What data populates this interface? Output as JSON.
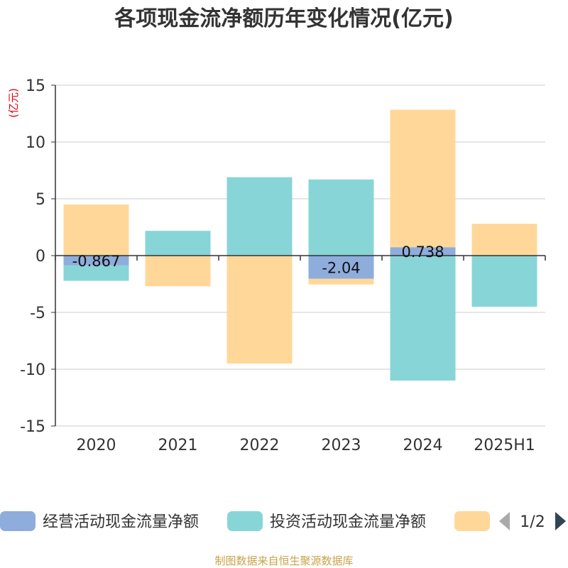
{
  "chart_data": {
    "type": "bar",
    "stacked": true,
    "title": "各项现金流净额历年变化情况(亿元)",
    "unit_label": "(亿元)",
    "categories": [
      "2020",
      "2021",
      "2022",
      "2023",
      "2024",
      "2025H1"
    ],
    "ylim": [
      -15,
      15
    ],
    "yticks": [
      "15",
      "10",
      "5",
      "0",
      "-5",
      "-10",
      "-15"
    ],
    "grid": true,
    "legend_position": "bottom",
    "series": [
      {
        "name": "经营活动现金流量净额",
        "color": "#8eaddc",
        "values": [
          -0.867,
          0.0,
          0.0,
          -2.04,
          0.738,
          0.0
        ],
        "labels": [
          "-0.867",
          "",
          "",
          "-2.04",
          "0.738",
          ""
        ]
      },
      {
        "name": "投资活动现金流量净额",
        "color": "#88d5d8",
        "values": [
          -1.35,
          2.18,
          6.9,
          6.7,
          -11.0,
          -4.5
        ],
        "labels": [
          "",
          "",
          "",
          "",
          "",
          ""
        ]
      },
      {
        "name": "",
        "color": "#ffd899",
        "values": [
          4.5,
          -2.7,
          -9.5,
          -0.5,
          12.1,
          2.8
        ],
        "labels": [
          "",
          "",
          "",
          "",
          "",
          ""
        ]
      }
    ],
    "pager": "1/2"
  },
  "source": "制图数据来自恒生聚源数据库"
}
